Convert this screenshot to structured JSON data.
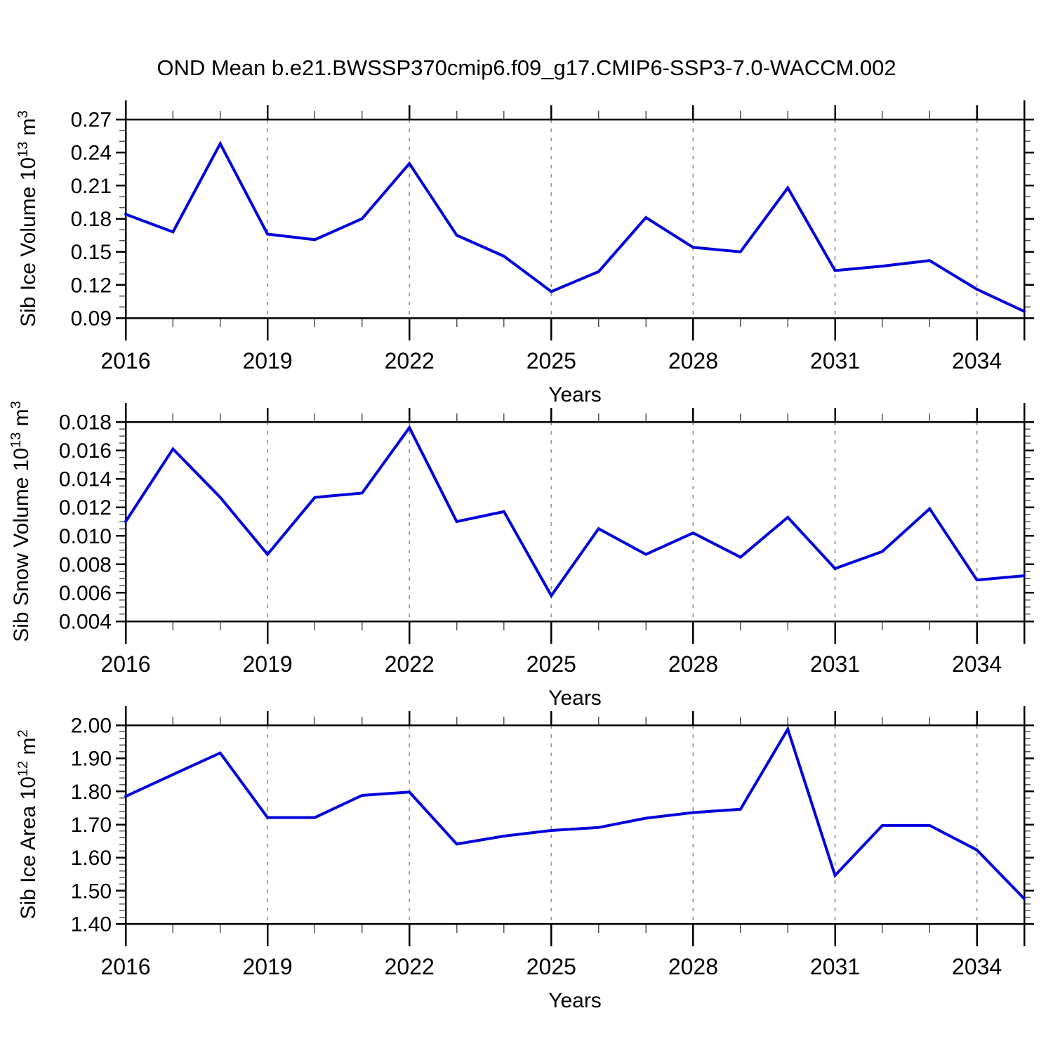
{
  "title": "OND Mean b.e21.BWSSP370cmip6.f09_g17.CMIP6-SSP3-7.0-WACCM.002",
  "colors": {
    "line": "#0000dd",
    "grid": "#999999",
    "frame": "#000000",
    "minor_tick": "#555555",
    "text": "#000000",
    "background": "#ffffff"
  },
  "chart_data": [
    {
      "type": "line",
      "name": "sib-ice-volume",
      "ylabel": "Sib Ice Volume 10^13 m^3",
      "ylabel_segments": [
        {
          "t": "Sib Ice Volume 10"
        },
        {
          "t": "13",
          "sup": true
        },
        {
          "t": " m"
        },
        {
          "t": "3",
          "sup": true
        }
      ],
      "xlabel": "Years",
      "xlim": [
        2016,
        2035
      ],
      "ylim": [
        0.09,
        0.27
      ],
      "x": [
        2016,
        2017,
        2018,
        2019,
        2020,
        2021,
        2022,
        2023,
        2024,
        2025,
        2026,
        2027,
        2028,
        2029,
        2030,
        2031,
        2032,
        2033,
        2034,
        2035
      ],
      "values": [
        0.184,
        0.168,
        0.248,
        0.166,
        0.161,
        0.18,
        0.23,
        0.165,
        0.146,
        0.114,
        0.132,
        0.181,
        0.154,
        0.15,
        0.208,
        0.133,
        0.137,
        0.142,
        0.116,
        0.096
      ],
      "yticks": [
        0.09,
        0.12,
        0.15,
        0.18,
        0.21,
        0.24,
        0.27
      ],
      "ytick_labels": [
        "0.09",
        "0.12",
        "0.15",
        "0.18",
        "0.21",
        "0.24",
        "0.27"
      ],
      "ytick_minor_step": 0.01,
      "xticks_labeled": [
        2016,
        2019,
        2022,
        2025,
        2028,
        2031,
        2034
      ],
      "xtick_labels": [
        "2016",
        "2019",
        "2022",
        "2025",
        "2028",
        "2031",
        "2034"
      ],
      "grid_years": [
        2019,
        2022,
        2025,
        2028,
        2031,
        2034
      ],
      "grid": true,
      "legend": "none"
    },
    {
      "type": "line",
      "name": "sib-snow-volume",
      "ylabel": "Sib Snow Volume 10^13 m^3",
      "ylabel_segments": [
        {
          "t": "Sib Snow Volume 10"
        },
        {
          "t": "13",
          "sup": true
        },
        {
          "t": " m"
        },
        {
          "t": "3",
          "sup": true
        }
      ],
      "xlabel": "Years",
      "xlim": [
        2016,
        2035
      ],
      "ylim": [
        0.004,
        0.018
      ],
      "x": [
        2016,
        2017,
        2018,
        2019,
        2020,
        2021,
        2022,
        2023,
        2024,
        2025,
        2026,
        2027,
        2028,
        2029,
        2030,
        2031,
        2032,
        2033,
        2034,
        2035
      ],
      "values": [
        0.011,
        0.0161,
        0.0127,
        0.0087,
        0.0127,
        0.013,
        0.0176,
        0.011,
        0.0117,
        0.0058,
        0.0105,
        0.0087,
        0.0102,
        0.0085,
        0.0113,
        0.0077,
        0.0089,
        0.0119,
        0.0069,
        0.0072
      ],
      "yticks": [
        0.004,
        0.006,
        0.008,
        0.01,
        0.012,
        0.014,
        0.016,
        0.018
      ],
      "ytick_labels": [
        "0.004",
        "0.006",
        "0.008",
        "0.010",
        "0.012",
        "0.014",
        "0.016",
        "0.018"
      ],
      "ytick_minor_step": 0.0005,
      "xticks_labeled": [
        2016,
        2019,
        2022,
        2025,
        2028,
        2031,
        2034
      ],
      "xtick_labels": [
        "2016",
        "2019",
        "2022",
        "2025",
        "2028",
        "2031",
        "2034"
      ],
      "grid_years": [
        2019,
        2022,
        2025,
        2028,
        2031,
        2034
      ],
      "grid": true,
      "legend": "none"
    },
    {
      "type": "line",
      "name": "sib-ice-area",
      "ylabel": "Sib Ice Area 10^12 m^2",
      "ylabel_segments": [
        {
          "t": "Sib Ice Area 10"
        },
        {
          "t": "12",
          "sup": true
        },
        {
          "t": " m"
        },
        {
          "t": "2",
          "sup": true
        }
      ],
      "xlabel": "Years",
      "xlim": [
        2016,
        2035
      ],
      "ylim": [
        1.4,
        2.0
      ],
      "x": [
        2016,
        2017,
        2018,
        2019,
        2020,
        2021,
        2022,
        2023,
        2024,
        2025,
        2026,
        2027,
        2028,
        2029,
        2030,
        2031,
        2032,
        2033,
        2034,
        2035
      ],
      "values": [
        1.785,
        1.851,
        1.916,
        1.721,
        1.721,
        1.788,
        1.798,
        1.641,
        1.665,
        1.682,
        1.691,
        1.719,
        1.736,
        1.746,
        1.988,
        1.546,
        1.697,
        1.697,
        1.623,
        1.476
      ],
      "yticks": [
        1.4,
        1.5,
        1.6,
        1.7,
        1.8,
        1.9,
        2.0
      ],
      "ytick_labels": [
        "1.40",
        "1.50",
        "1.60",
        "1.70",
        "1.80",
        "1.90",
        "2.00"
      ],
      "ytick_minor_step": 0.02,
      "xticks_labeled": [
        2016,
        2019,
        2022,
        2025,
        2028,
        2031,
        2034
      ],
      "xtick_labels": [
        "2016",
        "2019",
        "2022",
        "2025",
        "2028",
        "2031",
        "2034"
      ],
      "grid_years": [
        2019,
        2022,
        2025,
        2028,
        2031,
        2034
      ],
      "grid": true,
      "legend": "none"
    }
  ]
}
